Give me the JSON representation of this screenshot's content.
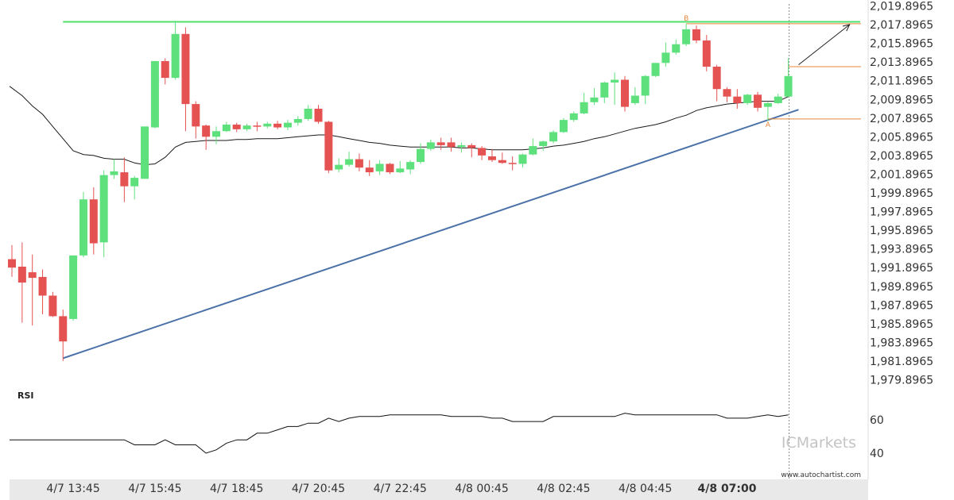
{
  "colors": {
    "up": "#5ee07d",
    "down": "#e55252",
    "moving_average": "#1a1a1a",
    "support_line": "#4a72a8",
    "resistance_line": "#4ee06c",
    "level_lines": "#e8873a",
    "rsi_line": "#111111",
    "axis_band": "#e9e9e9",
    "watermark": "#c4c4c4"
  },
  "chart_data": {
    "type": "candlestick",
    "y_ticks": [
      "2,019.8965",
      "2,017.8965",
      "2,015.8965",
      "2,013.8965",
      "2,011.8965",
      "2,009.8965",
      "2,007.8965",
      "2,005.8965",
      "2,003.8965",
      "2,001.8965",
      "1,999.8965",
      "1,997.8965",
      "1,995.8965",
      "1,993.8965",
      "1,991.8965",
      "1,989.8965",
      "1,987.8965",
      "1,985.8965",
      "1,983.8965",
      "1,981.8965",
      "1,979.8965"
    ],
    "ylim": [
      1979.8965,
      2019.8965
    ],
    "x_ticks": [
      "4/7 13:45",
      "4/7 15:45",
      "4/7 18:45",
      "4/7 20:45",
      "4/7 22:45",
      "4/8 00:45",
      "4/8 02:45",
      "4/8 04:45",
      "4/8 07:00"
    ],
    "x_tick_bold_index": 8,
    "x_tick_candle_index": [
      6,
      14,
      22,
      30,
      38,
      46,
      54,
      62,
      70
    ],
    "candles": [
      [
        1992.8,
        1994.3,
        1991.9,
        1990.9
      ],
      [
        1992.0,
        1994.6,
        1990.3,
        1986.0
      ],
      [
        1991.4,
        1993.3,
        1990.8,
        1985.7
      ],
      [
        1990.9,
        1991.7,
        1988.9,
        1986.9
      ],
      [
        1988.9,
        1989.3,
        1986.7,
        1986.6
      ],
      [
        1986.7,
        1987.4,
        1984.0,
        1981.9
      ],
      [
        1986.4,
        1993.2,
        1993.2,
        1986.2
      ],
      [
        1993.2,
        2000.0,
        1999.2,
        1993.0
      ],
      [
        1999.2,
        2000.5,
        1994.5,
        1993.3
      ],
      [
        1994.6,
        2002.3,
        2001.8,
        1993.0
      ],
      [
        2001.8,
        2003.5,
        2002.2,
        2001.4
      ],
      [
        2002.1,
        2003.7,
        2000.6,
        1998.9
      ],
      [
        2000.6,
        2001.7,
        2001.5,
        1999.2
      ],
      [
        2001.4,
        2006.4,
        2007.0,
        2001.4
      ],
      [
        2006.9,
        2014.0,
        2014.0,
        2006.8
      ],
      [
        2014.0,
        2014.3,
        2012.2,
        2011.5
      ],
      [
        2012.2,
        2018.3,
        2016.9,
        2012.0
      ],
      [
        2016.9,
        2017.6,
        2009.4,
        2006.5
      ],
      [
        2009.4,
        2009.7,
        2007.0,
        2005.7
      ],
      [
        2007.1,
        2007.2,
        2005.9,
        2004.5
      ],
      [
        2005.9,
        2007.0,
        2006.5,
        2005.1
      ],
      [
        2006.5,
        2007.5,
        2007.2,
        2006.4
      ],
      [
        2007.2,
        2007.4,
        2006.7,
        2006.4
      ],
      [
        2006.7,
        2007.3,
        2007.1,
        2006.5
      ],
      [
        2007.1,
        2007.5,
        2007.0,
        2006.5
      ],
      [
        2007.0,
        2007.5,
        2007.3,
        2006.8
      ],
      [
        2007.3,
        2007.6,
        2006.9,
        2006.7
      ],
      [
        2006.9,
        2007.7,
        2007.4,
        2006.6
      ],
      [
        2007.4,
        2008.1,
        2007.8,
        2007.1
      ],
      [
        2007.8,
        2009.3,
        2008.9,
        2007.6
      ],
      [
        2008.9,
        2009.3,
        2007.5,
        2007.3
      ],
      [
        2007.5,
        2007.6,
        2002.3,
        2002.0
      ],
      [
        2002.4,
        2003.6,
        2002.9,
        2002.1
      ],
      [
        2002.9,
        2004.3,
        2003.5,
        2002.7
      ],
      [
        2003.5,
        2004.1,
        2002.6,
        2002.2
      ],
      [
        2002.6,
        2003.4,
        2002.1,
        2001.7
      ],
      [
        2002.2,
        2003.4,
        2003.0,
        2001.8
      ],
      [
        2003.0,
        2003.1,
        2002.1,
        2001.9
      ],
      [
        2002.1,
        2003.3,
        2002.5,
        2002.0
      ],
      [
        2002.4,
        2003.4,
        2003.2,
        2001.9
      ],
      [
        2003.2,
        2005.2,
        2004.6,
        2003.0
      ],
      [
        2004.6,
        2005.6,
        2005.3,
        2004.4
      ],
      [
        2005.3,
        2005.8,
        2005.0,
        2004.5
      ],
      [
        2005.3,
        2005.8,
        2004.8,
        2004.3
      ],
      [
        2004.8,
        2005.3,
        2005.0,
        2004.2
      ],
      [
        2005.0,
        2005.2,
        2004.7,
        2003.7
      ],
      [
        2004.7,
        2004.9,
        2003.9,
        2003.4
      ],
      [
        2003.8,
        2004.6,
        2003.4,
        2003.2
      ],
      [
        2003.4,
        2004.2,
        2003.1,
        2003.0
      ],
      [
        2003.1,
        2003.8,
        2003.0,
        2002.3
      ],
      [
        2003.0,
        2004.1,
        2004.0,
        2002.6
      ],
      [
        2004.0,
        2005.7,
        2004.9,
        2003.9
      ],
      [
        2004.9,
        2005.5,
        2005.4,
        2004.4
      ],
      [
        2005.4,
        2006.6,
        2006.4,
        2005.2
      ],
      [
        2006.4,
        2007.9,
        2007.7,
        2006.3
      ],
      [
        2007.7,
        2008.6,
        2008.4,
        2007.5
      ],
      [
        2008.4,
        2010.6,
        2009.6,
        2008.3
      ],
      [
        2009.6,
        2011.1,
        2010.1,
        2009.3
      ],
      [
        2010.1,
        2011.8,
        2011.7,
        2009.5
      ],
      [
        2011.7,
        2012.8,
        2012.0,
        2009.3
      ],
      [
        2012.0,
        2012.4,
        2009.1,
        2008.6
      ],
      [
        2009.5,
        2011.2,
        2010.3,
        2009.3
      ],
      [
        2010.3,
        2012.5,
        2012.4,
        2009.4
      ],
      [
        2012.4,
        2013.8,
        2013.8,
        2012.3
      ],
      [
        2013.8,
        2016.0,
        2014.9,
        2013.4
      ],
      [
        2014.9,
        2016.3,
        2015.8,
        2014.7
      ],
      [
        2015.8,
        2018.0,
        2017.4,
        2015.6
      ],
      [
        2017.4,
        2017.8,
        2016.2,
        2015.9
      ],
      [
        2016.2,
        2016.8,
        2013.4,
        2012.9
      ],
      [
        2013.4,
        2013.6,
        2011.0,
        2009.7
      ],
      [
        2011.0,
        2011.2,
        2010.2,
        2009.6
      ],
      [
        2010.2,
        2011.0,
        2009.5,
        2008.9
      ],
      [
        2009.5,
        2010.5,
        2010.4,
        2009.3
      ],
      [
        2010.4,
        2010.7,
        2009.0,
        2008.6
      ],
      [
        2009.1,
        2009.6,
        2009.5,
        2007.6
      ],
      [
        2009.5,
        2010.5,
        2010.2,
        2009.4
      ],
      [
        2010.2,
        2014.3,
        2012.4,
        2010.1
      ]
    ],
    "candle_order": [
      "open",
      "high",
      "close",
      "low"
    ],
    "moving_average": [
      2011.3,
      2010.3,
      2009.2,
      2008.3,
      2007.0,
      2005.7,
      2004.4,
      2004.0,
      2003.9,
      2003.6,
      2003.5,
      2003.5,
      2003.1,
      2002.9,
      2003.0,
      2003.7,
      2004.8,
      2005.3,
      2005.4,
      2005.5,
      2005.5,
      2005.5,
      2005.6,
      2005.6,
      2005.7,
      2005.7,
      2005.7,
      2005.8,
      2005.9,
      2006.0,
      2006.1,
      2006.1,
      2005.9,
      2005.7,
      2005.5,
      2005.3,
      2005.2,
      2005.0,
      2004.9,
      2004.8,
      2004.8,
      2004.8,
      2004.8,
      2004.8,
      2004.7,
      2004.7,
      2004.6,
      2004.5,
      2004.5,
      2004.5,
      2004.5,
      2004.6,
      2004.7,
      2004.9,
      2005.0,
      2005.2,
      2005.4,
      2005.7,
      2005.9,
      2006.2,
      2006.5,
      2006.8,
      2007.0,
      2007.2,
      2007.5,
      2007.9,
      2008.2,
      2008.7,
      2009.0,
      2009.2,
      2009.4,
      2009.5,
      2009.6,
      2009.7,
      2009.7,
      2009.7,
      2010.2
    ],
    "support_line": {
      "from": {
        "index": 5,
        "value": 1982.2
      },
      "to": {
        "index": 77,
        "value": 2008.8
      }
    },
    "resistance_line": {
      "value": 2018.2,
      "from_index": 5,
      "to_index": 77
    },
    "level_A": {
      "label": "A",
      "value": 2007.8,
      "index": 74
    },
    "level_B": {
      "label": "B",
      "value": 2018.0,
      "index": 66
    },
    "current_level": {
      "value": 2013.4
    },
    "projection_arrow": {
      "from": {
        "index": 77,
        "value": 2013.6
      },
      "to": {
        "index": 82,
        "value": 2017.9
      }
    },
    "rsi": {
      "title": "RSI",
      "y_ticks": [
        "60",
        "40"
      ],
      "ylim": [
        30,
        68
      ],
      "values": [
        48,
        48,
        48,
        48,
        48,
        48,
        48,
        48,
        48,
        48,
        48,
        48,
        45,
        45,
        45,
        48,
        45,
        45,
        45,
        40,
        42,
        46,
        48,
        48,
        52,
        52,
        54,
        56,
        56,
        58,
        58,
        61,
        59,
        61,
        62,
        62,
        62,
        63,
        63,
        63,
        63,
        63,
        63,
        62,
        62,
        62,
        62,
        61,
        61,
        59,
        59,
        59,
        59,
        62,
        62,
        62,
        62,
        62,
        62,
        62,
        64,
        63,
        63,
        63,
        63,
        63,
        63,
        63,
        63,
        63,
        61,
        61,
        61,
        62,
        63,
        62,
        63
      ]
    }
  },
  "branding": {
    "watermark": "ICMarkets",
    "source": "www.autochartist.com"
  }
}
